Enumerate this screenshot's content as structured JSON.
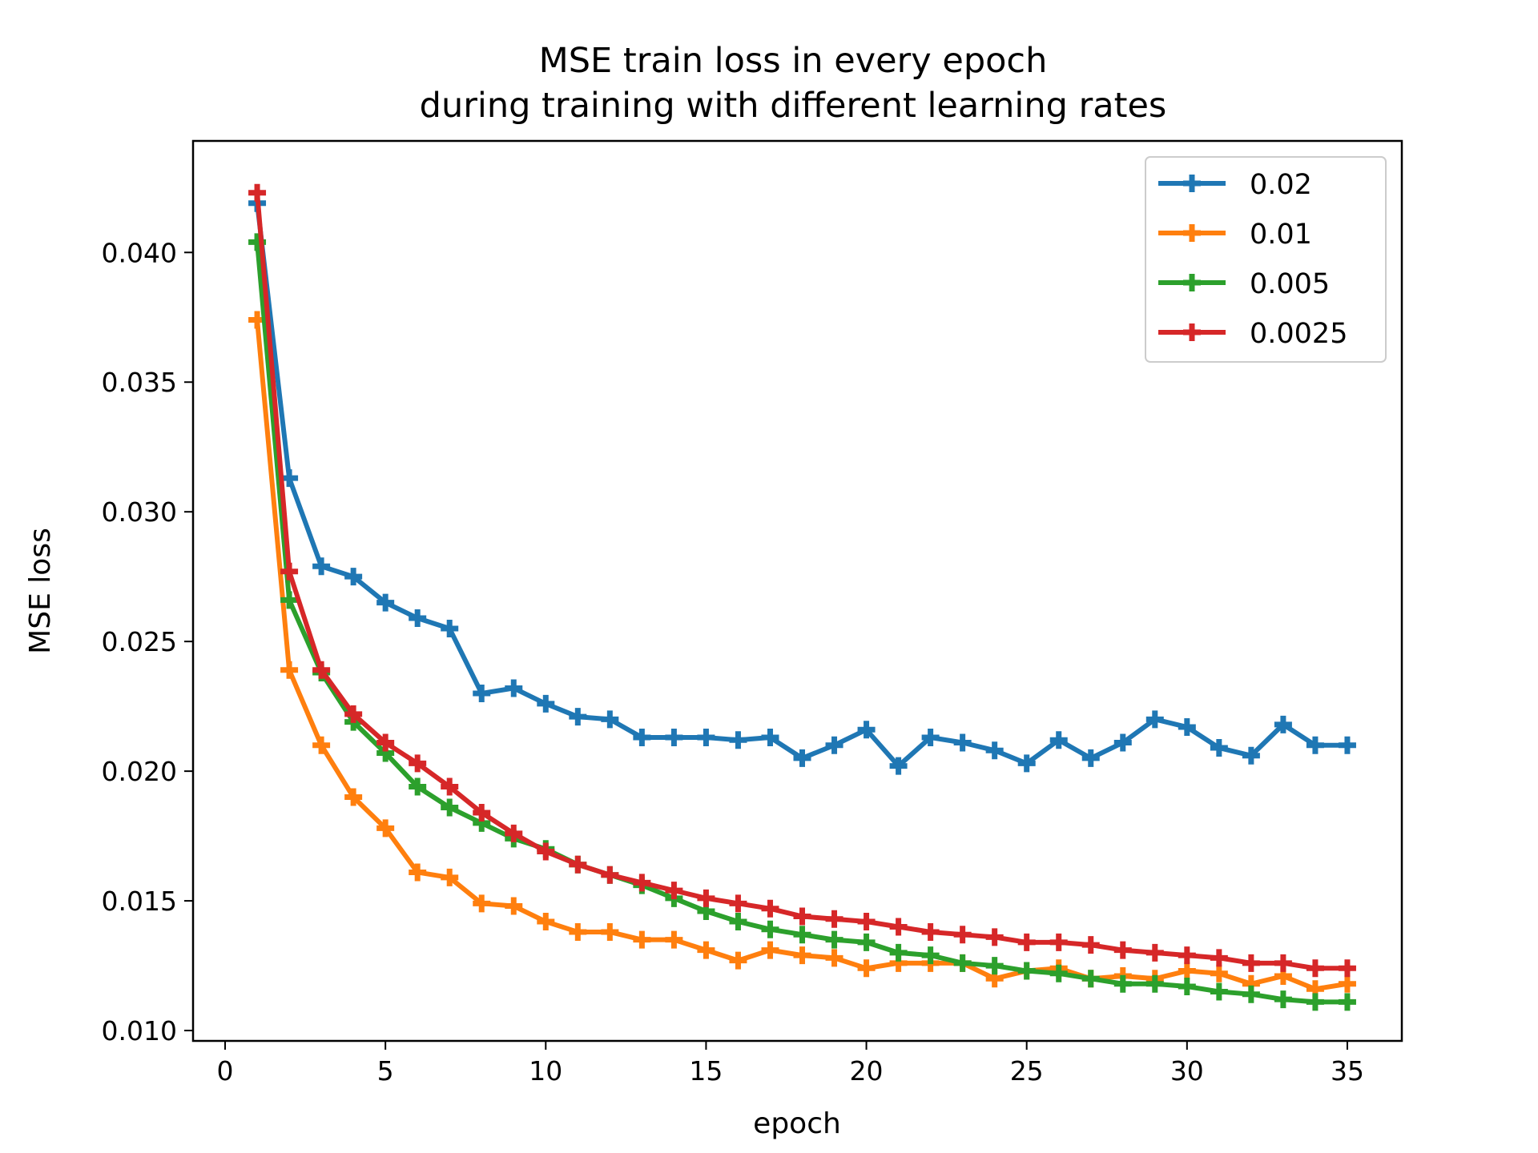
{
  "chart_data": {
    "type": "line",
    "title": "MSE train loss in every epoch",
    "subtitle": "during training with different learning rates",
    "xlabel": "epoch",
    "ylabel": "MSE loss",
    "xlim": [
      -1,
      36.7
    ],
    "ylim": [
      0.0096,
      0.0443
    ],
    "xticks": [
      0,
      5,
      10,
      15,
      20,
      25,
      30,
      35
    ],
    "xtick_labels": [
      "0",
      "5",
      "10",
      "15",
      "20",
      "25",
      "30",
      "35"
    ],
    "yticks": [
      0.01,
      0.015,
      0.02,
      0.025,
      0.03,
      0.035,
      0.04
    ],
    "ytick_labels": [
      "0.010",
      "0.015",
      "0.020",
      "0.025",
      "0.030",
      "0.035",
      "0.040"
    ],
    "grid": false,
    "legend": "top-right",
    "marker": "plus",
    "x": [
      1,
      2,
      3,
      4,
      5,
      6,
      7,
      8,
      9,
      10,
      11,
      12,
      13,
      14,
      15,
      16,
      17,
      18,
      19,
      20,
      21,
      22,
      23,
      24,
      25,
      26,
      27,
      28,
      29,
      30,
      31,
      32,
      33,
      34,
      35
    ],
    "series": [
      {
        "name": "0.02",
        "color": "#1f77b4",
        "values": [
          0.0419,
          0.0313,
          0.0279,
          0.0275,
          0.0265,
          0.0259,
          0.0255,
          0.023,
          0.0232,
          0.0226,
          0.0221,
          0.022,
          0.0213,
          0.0213,
          0.0213,
          0.0212,
          0.0213,
          0.0205,
          0.021,
          0.0216,
          0.0202,
          0.0213,
          0.0211,
          0.0208,
          0.0203,
          0.0212,
          0.0205,
          0.0211,
          0.022,
          0.0217,
          0.0209,
          0.0206,
          0.0218,
          0.021,
          0.021
        ]
      },
      {
        "name": "0.01",
        "color": "#ff7f0e",
        "values": [
          0.0374,
          0.0239,
          0.021,
          0.019,
          0.0178,
          0.0161,
          0.0159,
          0.0149,
          0.0148,
          0.0142,
          0.0138,
          0.0138,
          0.0135,
          0.0135,
          0.0131,
          0.0127,
          0.0131,
          0.0129,
          0.0128,
          0.0124,
          0.0126,
          0.0126,
          0.0126,
          0.012,
          0.0123,
          0.0124,
          0.012,
          0.0121,
          0.012,
          0.0123,
          0.0122,
          0.0118,
          0.0121,
          0.0116,
          0.0118
        ]
      },
      {
        "name": "0.005",
        "color": "#2ca02c",
        "values": [
          0.0404,
          0.0266,
          0.0238,
          0.0219,
          0.0207,
          0.0194,
          0.0186,
          0.018,
          0.0174,
          0.017,
          0.0164,
          0.016,
          0.0156,
          0.0151,
          0.0146,
          0.0142,
          0.0139,
          0.0137,
          0.0135,
          0.0134,
          0.013,
          0.0129,
          0.0126,
          0.0125,
          0.0123,
          0.0122,
          0.012,
          0.0118,
          0.0118,
          0.0117,
          0.0115,
          0.0114,
          0.0112,
          0.0111,
          0.0111
        ]
      },
      {
        "name": "0.0025",
        "color": "#d62728",
        "values": [
          0.0423,
          0.0277,
          0.0239,
          0.0222,
          0.0211,
          0.0203,
          0.0194,
          0.0184,
          0.0176,
          0.0169,
          0.0164,
          0.016,
          0.0157,
          0.0154,
          0.0151,
          0.0149,
          0.0147,
          0.0144,
          0.0143,
          0.0142,
          0.014,
          0.0138,
          0.0137,
          0.0136,
          0.0134,
          0.0134,
          0.0133,
          0.0131,
          0.013,
          0.0129,
          0.0128,
          0.0126,
          0.0126,
          0.0124,
          0.0124
        ]
      }
    ]
  }
}
